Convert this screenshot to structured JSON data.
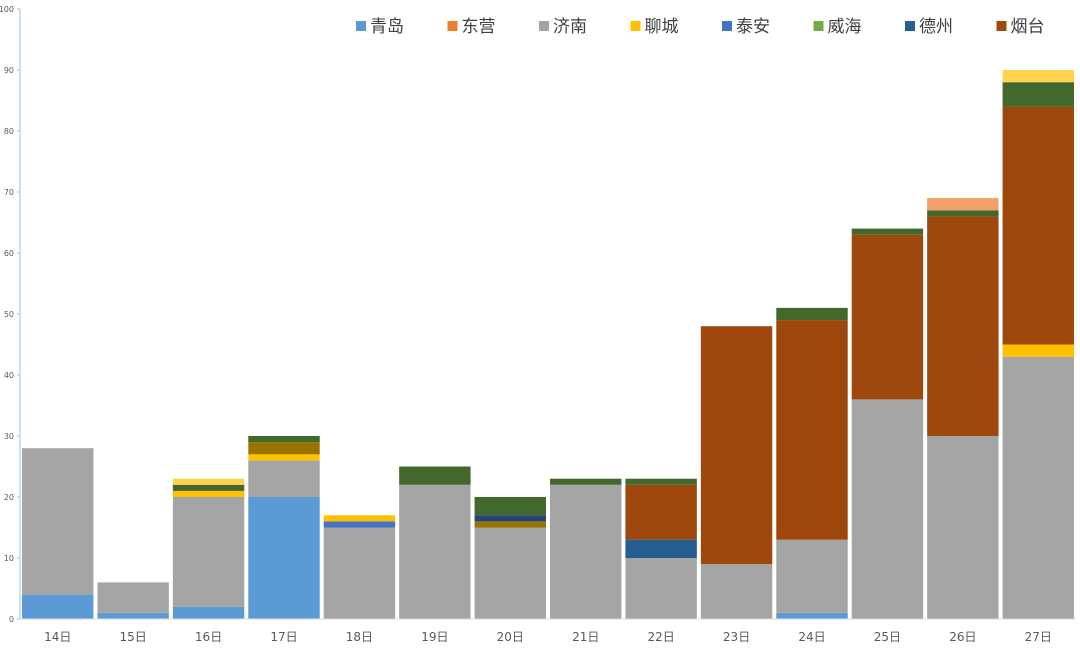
{
  "chart_data": {
    "type": "bar",
    "stacked": true,
    "title": "",
    "xlabel": "",
    "ylabel": "",
    "ylim": [
      0,
      100
    ],
    "yticks": [
      0,
      10,
      20,
      30,
      40,
      50,
      60,
      70,
      80,
      90,
      100
    ],
    "grid": false,
    "legend_position": "top-right",
    "categories": [
      "14日",
      "15日",
      "16日",
      "17日",
      "18日",
      "19日",
      "20日",
      "21日",
      "22日",
      "23日",
      "24日",
      "25日",
      "26日",
      "27日"
    ],
    "series": [
      {
        "name": "青岛",
        "color": "#5B9BD5",
        "values": [
          4,
          1,
          2,
          20,
          0,
          0,
          0,
          0,
          0,
          0,
          1,
          0,
          0,
          0
        ]
      },
      {
        "name": "济南",
        "color": "#A5A5A5",
        "values": [
          24,
          5,
          18,
          6,
          15,
          22,
          15,
          22,
          10,
          9,
          12,
          36,
          30,
          43
        ]
      },
      {
        "name": "东营",
        "color": "#ED7D31",
        "values": [
          0,
          0,
          0,
          0,
          0,
          0,
          0,
          0,
          0,
          0,
          0,
          0,
          0,
          0
        ]
      },
      {
        "name": "泰安",
        "color": "#4472C4",
        "values": [
          0,
          0,
          0,
          0,
          1,
          0,
          0,
          0,
          0,
          0,
          0,
          0,
          0,
          0
        ]
      },
      {
        "name": "德州",
        "color": "#255E91",
        "values": [
          0,
          0,
          0,
          0,
          0,
          0,
          0,
          0,
          3,
          0,
          0,
          0,
          0,
          0
        ]
      },
      {
        "name": "聊城",
        "color": "#FFC000",
        "values": [
          0,
          0,
          1,
          1,
          1,
          0,
          0,
          0,
          0,
          0,
          0,
          0,
          0,
          2
        ]
      },
      {
        "name": "烟台",
        "color": "#9E480E",
        "values": [
          0,
          0,
          0,
          0,
          0,
          0,
          0,
          0,
          9,
          39,
          36,
          27,
          36,
          39
        ]
      },
      {
        "name": "威海",
        "color": "#70AD47",
        "values": [
          0,
          0,
          0,
          0,
          0,
          0,
          0,
          0,
          0,
          0,
          0,
          0,
          0,
          0
        ]
      },
      {
        "name": "",
        "color": "#997300",
        "values": [
          0,
          0,
          0,
          2,
          0,
          0,
          1,
          0,
          0,
          0,
          0,
          0,
          0,
          0
        ]
      },
      {
        "name": "",
        "color": "#264478",
        "values": [
          0,
          0,
          0,
          0,
          0,
          0,
          1,
          0,
          0,
          0,
          0,
          0,
          0,
          0
        ]
      },
      {
        "name": "",
        "color": "#43682B",
        "values": [
          0,
          0,
          1,
          1,
          0,
          3,
          3,
          1,
          1,
          0,
          2,
          1,
          1,
          4
        ]
      },
      {
        "name": "",
        "color": "#F4A06B",
        "values": [
          0,
          0,
          0,
          0,
          0,
          0,
          0,
          0,
          0,
          0,
          0,
          0,
          2,
          0
        ]
      },
      {
        "name": "",
        "color": "#FFD34D",
        "values": [
          0,
          0,
          1,
          0,
          0,
          0,
          0,
          0,
          0,
          0,
          0,
          0,
          0,
          2
        ]
      }
    ],
    "legend": [
      {
        "name": "青岛",
        "color": "#5B9BD5"
      },
      {
        "name": "东营",
        "color": "#ED7D31"
      },
      {
        "name": "济南",
        "color": "#A5A5A5"
      },
      {
        "name": "聊城",
        "color": "#FFC000"
      },
      {
        "name": "泰安",
        "color": "#4472C4"
      },
      {
        "name": "威海",
        "color": "#70AD47"
      },
      {
        "name": "德州",
        "color": "#255E91"
      },
      {
        "name": "烟台",
        "color": "#9E480E"
      }
    ]
  }
}
